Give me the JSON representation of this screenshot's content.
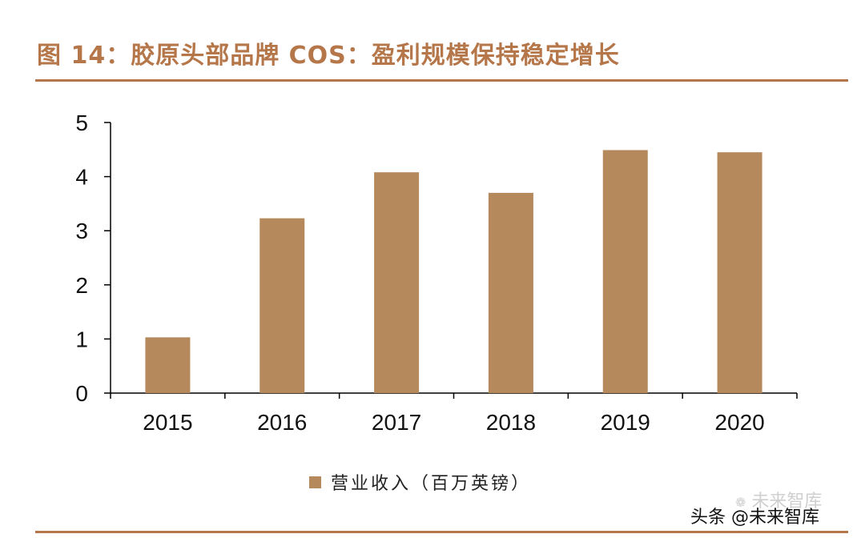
{
  "title": "图 14：胶原头部品牌 COS：盈利规模保持稳定增长",
  "colors": {
    "accent": "#B5774A",
    "bar": "#B5895C"
  },
  "watermark": {
    "icon": "wechat-icon",
    "text": "未来智库"
  },
  "source_label": "头条 @未来智库",
  "chart_data": {
    "type": "bar",
    "categories": [
      "2015",
      "2016",
      "2017",
      "2018",
      "2019",
      "2020"
    ],
    "series": [
      {
        "name": "营业收入（百万英镑）",
        "values": [
          1.03,
          3.23,
          4.08,
          3.7,
          4.49,
          4.45
        ]
      }
    ],
    "ylim": [
      0,
      5
    ],
    "yticks": [
      "0",
      "1",
      "2",
      "3",
      "4",
      "5"
    ],
    "xlabel": "",
    "ylabel": "",
    "grid": false,
    "legend": "bottom"
  }
}
